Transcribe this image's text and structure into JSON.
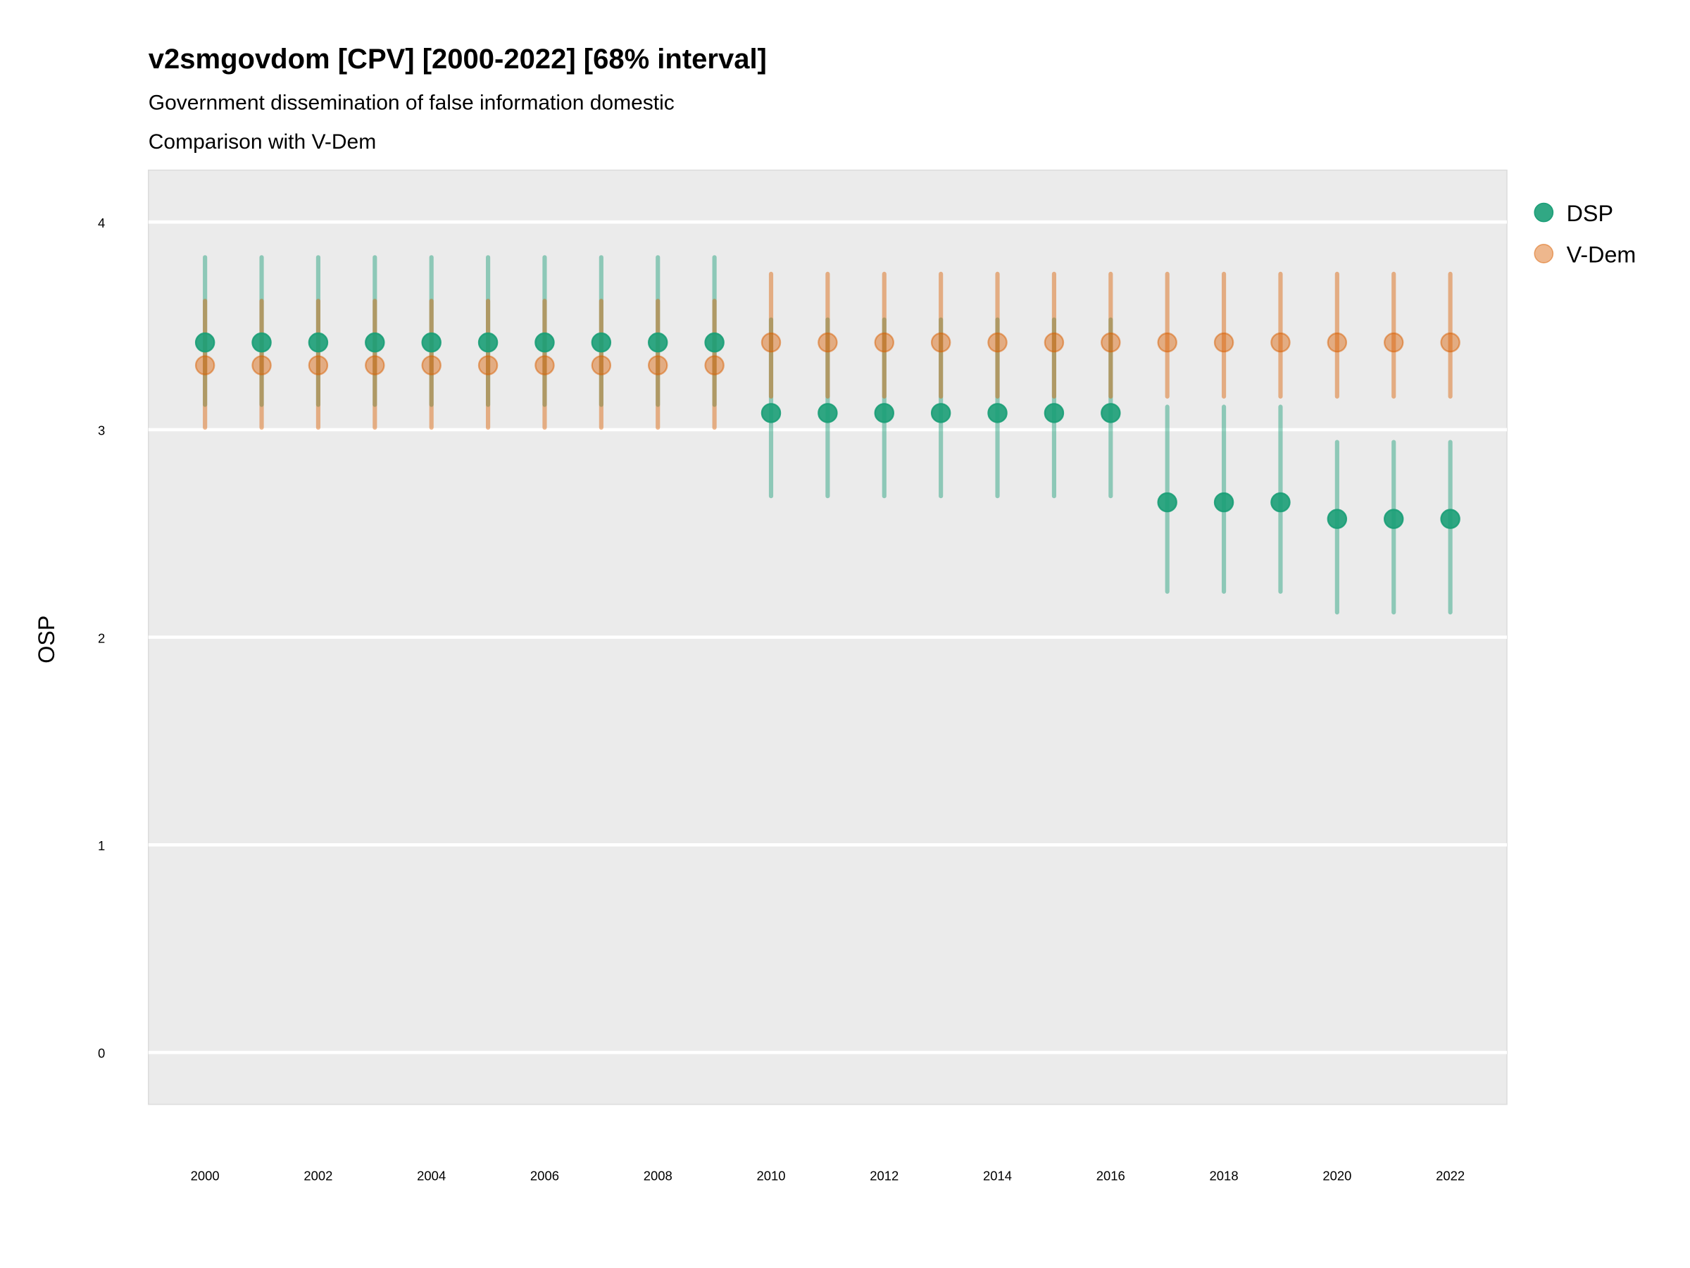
{
  "chart_data": {
    "type": "scatter",
    "title": "v2smgovdom [CPV] [2000-2022] [68% interval]",
    "subtitle": "Government dissemination of false information domestic",
    "subtitle2": "Comparison with V-Dem",
    "xlabel": "",
    "ylabel": "OSP",
    "xlim": [
      1999,
      2023
    ],
    "ylim": [
      -0.25,
      4.25
    ],
    "x_ticks": [
      2000,
      2002,
      2004,
      2006,
      2008,
      2010,
      2012,
      2014,
      2016,
      2018,
      2020,
      2022
    ],
    "y_ticks": [
      0,
      1,
      2,
      3,
      4
    ],
    "grid": true,
    "legend_position": "right",
    "series": [
      {
        "name": "DSP",
        "color": "#1b9e77",
        "x": [
          2000,
          2001,
          2002,
          2003,
          2004,
          2005,
          2006,
          2007,
          2008,
          2009,
          2010,
          2011,
          2012,
          2013,
          2014,
          2015,
          2016,
          2017,
          2018,
          2019,
          2020,
          2021,
          2022
        ],
        "y": [
          3.42,
          3.42,
          3.42,
          3.42,
          3.42,
          3.42,
          3.42,
          3.42,
          3.42,
          3.42,
          3.08,
          3.08,
          3.08,
          3.08,
          3.08,
          3.08,
          3.08,
          2.65,
          2.65,
          2.65,
          2.57,
          2.57,
          2.57
        ],
        "lower": [
          3.12,
          3.12,
          3.12,
          3.12,
          3.12,
          3.12,
          3.12,
          3.12,
          3.12,
          3.12,
          2.68,
          2.68,
          2.68,
          2.68,
          2.68,
          2.68,
          2.68,
          2.22,
          2.22,
          2.22,
          2.12,
          2.12,
          2.12
        ],
        "upper": [
          3.83,
          3.83,
          3.83,
          3.83,
          3.83,
          3.83,
          3.83,
          3.83,
          3.83,
          3.83,
          3.53,
          3.53,
          3.53,
          3.53,
          3.53,
          3.53,
          3.53,
          3.11,
          3.11,
          3.11,
          2.94,
          2.94,
          2.94
        ]
      },
      {
        "name": "V-Dem",
        "color": "#d95f02",
        "x": [
          2000,
          2001,
          2002,
          2003,
          2004,
          2005,
          2006,
          2007,
          2008,
          2009,
          2010,
          2011,
          2012,
          2013,
          2014,
          2015,
          2016,
          2017,
          2018,
          2019,
          2020,
          2021,
          2022
        ],
        "y": [
          3.31,
          3.31,
          3.31,
          3.31,
          3.31,
          3.31,
          3.31,
          3.31,
          3.31,
          3.31,
          3.42,
          3.42,
          3.42,
          3.42,
          3.42,
          3.42,
          3.42,
          3.42,
          3.42,
          3.42,
          3.42,
          3.42,
          3.42
        ],
        "lower": [
          3.01,
          3.01,
          3.01,
          3.01,
          3.01,
          3.01,
          3.01,
          3.01,
          3.01,
          3.01,
          3.16,
          3.16,
          3.16,
          3.16,
          3.16,
          3.16,
          3.16,
          3.16,
          3.16,
          3.16,
          3.16,
          3.16,
          3.16
        ],
        "upper": [
          3.62,
          3.62,
          3.62,
          3.62,
          3.62,
          3.62,
          3.62,
          3.62,
          3.62,
          3.62,
          3.75,
          3.75,
          3.75,
          3.75,
          3.75,
          3.75,
          3.75,
          3.75,
          3.75,
          3.75,
          3.75,
          3.75,
          3.75
        ]
      }
    ]
  }
}
